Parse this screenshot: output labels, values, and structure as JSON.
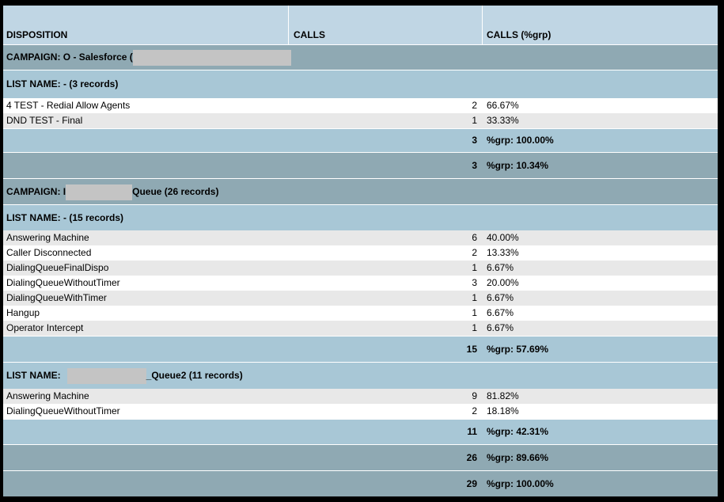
{
  "header": {
    "disposition": "DISPOSITION",
    "calls": "CALLS",
    "calls_grp": "CALLS (%grp)"
  },
  "campaign1": {
    "label_prefix": "CAMPAIGN: O - Salesforce (",
    "list": {
      "label": "LIST NAME: - (3 records)",
      "rows": [
        {
          "disposition": "4 TEST - Redial Allow Agents",
          "calls": "2",
          "pct": "66.67%"
        },
        {
          "disposition": "DND TEST - Final",
          "calls": "1",
          "pct": "33.33%"
        }
      ],
      "subtotal_calls": "3",
      "subtotal_pct": "%grp: 100.00%"
    },
    "total_calls": "3",
    "total_pct": "%grp: 10.34%"
  },
  "campaign2": {
    "label_prefix": "CAMPAIGN: I",
    "label_suffix": "Queue (26 records)",
    "list1": {
      "label": "LIST NAME: - (15 records)",
      "rows": [
        {
          "disposition": "Answering Machine",
          "calls": "6",
          "pct": "40.00%"
        },
        {
          "disposition": "Caller Disconnected",
          "calls": "2",
          "pct": "13.33%"
        },
        {
          "disposition": "DialingQueueFinalDispo",
          "calls": "1",
          "pct": "6.67%"
        },
        {
          "disposition": "DialingQueueWithoutTimer",
          "calls": "3",
          "pct": "20.00%"
        },
        {
          "disposition": "DialingQueueWithTimer",
          "calls": "1",
          "pct": "6.67%"
        },
        {
          "disposition": "Hangup",
          "calls": "1",
          "pct": "6.67%"
        },
        {
          "disposition": "Operator Intercept",
          "calls": "1",
          "pct": "6.67%"
        }
      ],
      "subtotal_calls": "15",
      "subtotal_pct": "%grp: 57.69%"
    },
    "list2": {
      "label_prefix": "LIST NAME:",
      "label_suffix": "_Queue2 (11 records)",
      "rows": [
        {
          "disposition": "Answering Machine",
          "calls": "9",
          "pct": "81.82%"
        },
        {
          "disposition": "DialingQueueWithoutTimer",
          "calls": "2",
          "pct": "18.18%"
        }
      ],
      "subtotal_calls": "11",
      "subtotal_pct": "%grp: 42.31%"
    },
    "total_calls": "26",
    "total_pct": "%grp: 89.66%"
  },
  "grand_total": {
    "calls": "29",
    "pct": "%grp: 100.00%"
  }
}
